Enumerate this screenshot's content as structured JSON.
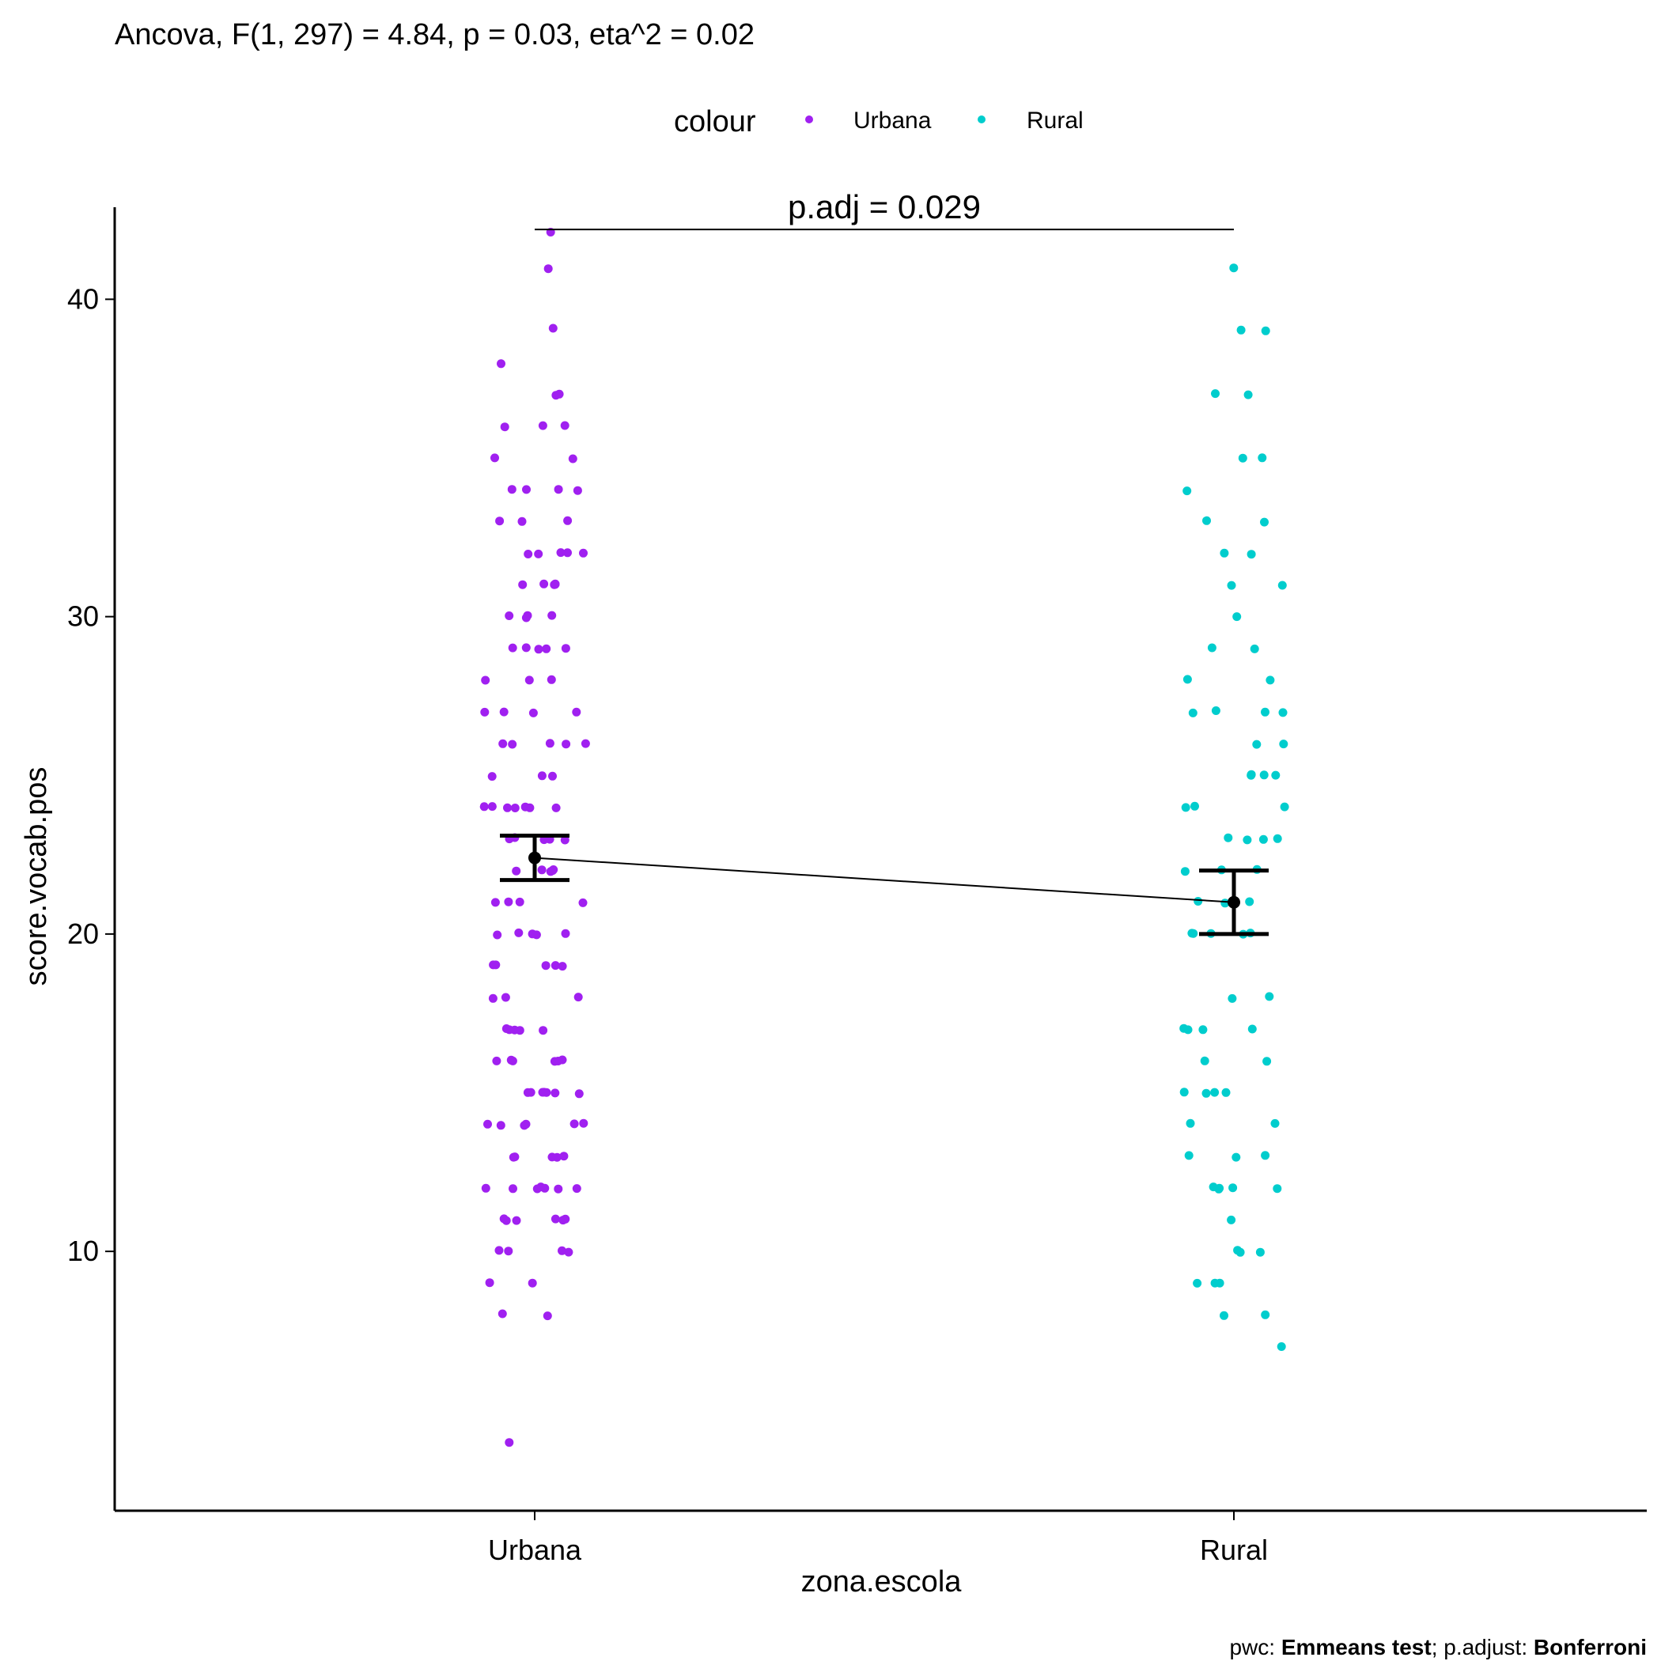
{
  "chart_data": {
    "type": "scatter",
    "subtitle": "Ancova, F(1, 297) = 4.84, p = 0.03, eta^2 = 0.02",
    "legend": {
      "title": "colour",
      "position": "top",
      "entries": [
        "Urbana",
        "Rural"
      ]
    },
    "xlabel": "zona.escola",
    "ylabel": "score.vocab.pos",
    "categories": [
      "Urbana",
      "Rural"
    ],
    "ylim": [
      3,
      43
    ],
    "yticks": [
      10,
      20,
      30,
      40
    ],
    "grid": false,
    "colors": {
      "Urbana": "#a020f0",
      "Rural": "#00cdcd",
      "mean": "#000000"
    },
    "series": [
      {
        "name": "Urbana",
        "points": [
          42.1,
          41.0,
          39.1,
          38.0,
          37.0,
          37.0,
          36.0,
          36.0,
          36.0,
          35.0,
          35.0,
          34.0,
          34.0,
          34.0,
          34.0,
          33.0,
          33.0,
          33.0,
          32.0,
          32.0,
          32.0,
          32.0,
          32.0,
          31.0,
          31.0,
          31.0,
          31.0,
          31.0,
          30.0,
          30.0,
          30.0,
          30.0,
          29.0,
          29.0,
          29.0,
          29.0,
          29.0,
          28.0,
          28.0,
          28.0,
          27.0,
          27.0,
          27.0,
          27.0,
          26.0,
          26.0,
          26.0,
          26.0,
          26.0,
          25.0,
          25.0,
          25.0,
          24.0,
          24.0,
          24.0,
          24.0,
          24.0,
          24.0,
          24.0,
          23.0,
          23.0,
          23.0,
          23.0,
          23.0,
          22.0,
          22.0,
          22.0,
          22.0,
          22.0,
          22.0,
          21.0,
          21.0,
          21.0,
          21.0,
          20.0,
          20.0,
          20.0,
          20.0,
          20.0,
          19.0,
          19.0,
          19.0,
          19.0,
          19.0,
          18.0,
          18.0,
          18.0,
          17.0,
          17.0,
          17.0,
          17.0,
          17.0,
          16.0,
          16.0,
          16.0,
          16.0,
          16.0,
          16.0,
          15.0,
          15.0,
          15.0,
          15.0,
          15.0,
          15.0,
          15.0,
          14.0,
          14.0,
          14.0,
          14.0,
          14.0,
          14.0,
          13.0,
          13.0,
          13.0,
          13.0,
          13.0,
          12.0,
          12.0,
          12.0,
          12.0,
          12.0,
          12.0,
          12.0,
          11.0,
          11.0,
          11.0,
          11.0,
          11.0,
          11.0,
          10.0,
          10.0,
          10.0,
          10.0,
          9.0,
          9.0,
          8.0,
          8.0,
          4.0
        ],
        "mean": 22.4,
        "ci": [
          21.7,
          23.1
        ]
      },
      {
        "name": "Rural",
        "points": [
          41.0,
          39.0,
          39.0,
          37.0,
          37.0,
          35.0,
          35.0,
          34.0,
          33.0,
          33.0,
          32.0,
          32.0,
          31.0,
          31.0,
          30.0,
          29.0,
          29.0,
          28.0,
          28.0,
          27.0,
          27.0,
          27.0,
          27.0,
          26.0,
          26.0,
          25.0,
          25.0,
          25.0,
          25.0,
          24.0,
          24.0,
          24.0,
          23.0,
          23.0,
          23.0,
          23.0,
          22.0,
          22.0,
          22.0,
          21.0,
          21.0,
          21.0,
          20.0,
          20.0,
          20.0,
          20.0,
          20.0,
          18.0,
          18.0,
          17.0,
          17.0,
          17.0,
          17.0,
          16.0,
          16.0,
          15.0,
          15.0,
          15.0,
          15.0,
          14.0,
          14.0,
          13.0,
          13.0,
          13.0,
          12.0,
          12.0,
          12.0,
          12.0,
          12.0,
          11.0,
          10.0,
          10.0,
          10.0,
          9.0,
          9.0,
          9.0,
          8.0,
          8.0,
          7.0
        ],
        "mean": 21.0,
        "ci": [
          20.0,
          22.0
        ]
      }
    ],
    "comparison": {
      "label": "p.adj = 0.029",
      "from": "Urbana",
      "to": "Rural",
      "y": 42.2
    },
    "caption": {
      "prefix": "pwc: ",
      "test": "Emmeans test",
      "middle": "; p.adjust: ",
      "adjust": "Bonferroni"
    }
  }
}
